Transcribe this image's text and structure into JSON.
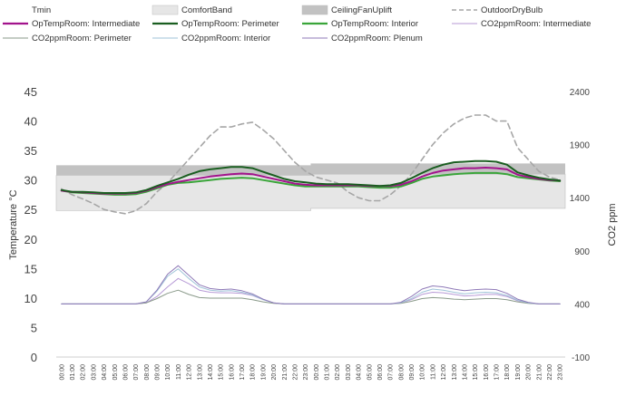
{
  "chart_data": {
    "type": "line",
    "title": "",
    "ylabel": "Temperature °C",
    "y2label": "CO2 ppm",
    "ylim": [
      0,
      45
    ],
    "y2lim": [
      -100,
      2400
    ],
    "yticks": [
      0,
      5,
      10,
      15,
      20,
      25,
      30,
      35,
      40,
      45
    ],
    "y2ticks": [
      -100,
      400,
      900,
      1400,
      1900,
      2400
    ],
    "x": [
      "00:00",
      "01:00",
      "02:00",
      "03:00",
      "04:00",
      "05:00",
      "06:00",
      "07:00",
      "08:00",
      "09:00",
      "10:00",
      "11:00",
      "12:00",
      "13:00",
      "14:00",
      "15:00",
      "16:00",
      "17:00",
      "18:00",
      "19:00",
      "20:00",
      "21:00",
      "22:00",
      "23:00",
      "00:00",
      "01:00",
      "02:00",
      "03:00",
      "04:00",
      "05:00",
      "06:00",
      "07:00",
      "08:00",
      "09:00",
      "10:00",
      "11:00",
      "12:00",
      "13:00",
      "14:00",
      "15:00",
      "16:00",
      "17:00",
      "18:00",
      "19:00",
      "20:00",
      "21:00",
      "22:00",
      "23:00"
    ],
    "legend": [
      {
        "name": "Tmin",
        "style": "none",
        "color": "#ffffff"
      },
      {
        "name": "ComfortBand",
        "style": "box",
        "color": "#e6e6e6"
      },
      {
        "name": "CeilingFanUplift",
        "style": "box",
        "color": "#c2c2c2"
      },
      {
        "name": "OutdoorDryBulb",
        "style": "dash",
        "color": "#a6a6a6"
      },
      {
        "name": "OpTempRoom: Intermediate",
        "style": "line",
        "color": "#a2138c"
      },
      {
        "name": "OpTempRoom: Perimeter",
        "style": "line",
        "color": "#1a5e20"
      },
      {
        "name": "OpTempRoom: Interior",
        "style": "line",
        "color": "#3aa53a"
      },
      {
        "name": "CO2ppmRoom: Intermediate",
        "style": "thin",
        "color": "#b79ad6"
      },
      {
        "name": "CO2ppmRoom: Perimeter",
        "style": "thin",
        "color": "#8a9a8a"
      },
      {
        "name": "CO2ppmRoom: Interior",
        "style": "thin",
        "color": "#9fc3d8"
      },
      {
        "name": "CO2ppmRoom: Plenum",
        "style": "thin",
        "color": "#8f7ab8"
      }
    ],
    "bands": {
      "comfort_low": [
        24.8,
        24.8,
        24.8,
        24.8,
        24.8,
        24.8,
        24.8,
        24.8,
        24.8,
        24.8,
        24.8,
        24.8,
        24.8,
        24.8,
        24.8,
        24.8,
        24.8,
        24.8,
        24.8,
        24.8,
        24.8,
        24.8,
        24.8,
        24.8,
        25.2,
        25.2,
        25.2,
        25.2,
        25.2,
        25.2,
        25.2,
        25.2,
        25.2,
        25.2,
        25.2,
        25.2,
        25.2,
        25.2,
        25.2,
        25.2,
        25.2,
        25.2,
        25.2,
        25.2,
        25.2,
        25.2,
        25.2,
        25.2
      ],
      "comfort_high": [
        30.8,
        30.8,
        30.8,
        30.8,
        30.8,
        30.8,
        30.8,
        30.8,
        30.8,
        30.8,
        30.8,
        30.8,
        30.8,
        30.8,
        30.8,
        30.8,
        30.8,
        30.8,
        30.8,
        30.8,
        30.8,
        30.8,
        30.8,
        30.8,
        31.0,
        31.0,
        31.0,
        31.0,
        31.0,
        31.0,
        31.0,
        31.0,
        31.0,
        31.0,
        31.0,
        31.0,
        31.0,
        31.0,
        31.0,
        31.0,
        31.0,
        31.0,
        31.0,
        31.0,
        31.0,
        31.0,
        31.0,
        31.0
      ],
      "uplift_high": [
        32.5,
        32.5,
        32.5,
        32.5,
        32.5,
        32.5,
        32.5,
        32.5,
        32.5,
        32.5,
        32.5,
        32.5,
        32.5,
        32.5,
        32.5,
        32.5,
        32.5,
        32.5,
        32.5,
        32.5,
        32.5,
        32.5,
        32.5,
        32.5,
        32.8,
        32.8,
        32.8,
        32.8,
        32.8,
        32.8,
        32.8,
        32.8,
        32.8,
        32.8,
        32.8,
        32.8,
        32.8,
        32.8,
        32.8,
        32.8,
        32.8,
        32.8,
        32.8,
        32.8,
        32.8,
        32.8,
        32.8,
        32.8
      ]
    },
    "series": [
      {
        "name": "OutdoorDryBulb",
        "axis": "left",
        "color": "#a6a6a6",
        "width": 1.6,
        "dash": "6,4",
        "values": [
          28.5,
          27.5,
          26.8,
          26.0,
          25.0,
          24.6,
          24.3,
          24.8,
          26.0,
          28.0,
          29.5,
          31.5,
          33.5,
          35.5,
          37.5,
          39.0,
          39.0,
          39.5,
          39.8,
          38.5,
          37.0,
          35.0,
          33.0,
          31.5,
          30.5,
          30.0,
          29.5,
          28.0,
          27.0,
          26.5,
          26.5,
          27.5,
          29.0,
          31.0,
          33.5,
          36.0,
          38.0,
          39.5,
          40.5,
          41.0,
          41.0,
          40.0,
          40.0,
          35.5,
          33.5,
          31.5,
          30.5,
          30.0
        ]
      },
      {
        "name": "CO2ppmRoom: Intermediate",
        "axis": "right",
        "color": "#b79ad6",
        "width": 1,
        "values": [
          400,
          400,
          400,
          400,
          400,
          400,
          400,
          400,
          410,
          470,
          560,
          640,
          590,
          530,
          510,
          505,
          505,
          500,
          480,
          440,
          410,
          400,
          400,
          400,
          400,
          400,
          400,
          400,
          400,
          400,
          400,
          400,
          410,
          440,
          490,
          510,
          505,
          490,
          475,
          480,
          490,
          490,
          470,
          430,
          410,
          400,
          400,
          400
        ]
      },
      {
        "name": "CO2ppmRoom: Perimeter",
        "axis": "right",
        "color": "#8a9a8a",
        "width": 1,
        "values": [
          400,
          400,
          400,
          400,
          400,
          400,
          400,
          400,
          410,
          450,
          500,
          530,
          490,
          460,
          455,
          455,
          455,
          455,
          440,
          420,
          405,
          400,
          400,
          400,
          400,
          400,
          400,
          400,
          400,
          400,
          400,
          400,
          405,
          425,
          450,
          460,
          455,
          445,
          440,
          445,
          450,
          450,
          440,
          420,
          405,
          400,
          400,
          400
        ]
      },
      {
        "name": "CO2ppmRoom: Interior",
        "axis": "right",
        "color": "#9fc3d8",
        "width": 1,
        "values": [
          400,
          400,
          400,
          400,
          400,
          400,
          400,
          400,
          420,
          520,
          660,
          730,
          640,
          560,
          530,
          520,
          525,
          510,
          485,
          440,
          410,
          400,
          400,
          400,
          400,
          400,
          400,
          400,
          400,
          400,
          400,
          400,
          410,
          450,
          510,
          540,
          530,
          510,
          495,
          505,
          510,
          505,
          480,
          435,
          410,
          400,
          400,
          400
        ]
      },
      {
        "name": "CO2ppmRoom: Plenum",
        "axis": "right",
        "color": "#8f7ab8",
        "width": 1,
        "values": [
          400,
          400,
          400,
          400,
          400,
          400,
          400,
          400,
          420,
          530,
          680,
          760,
          670,
          580,
          545,
          535,
          540,
          525,
          495,
          445,
          410,
          400,
          400,
          400,
          400,
          400,
          400,
          400,
          400,
          400,
          400,
          400,
          415,
          470,
          540,
          570,
          560,
          540,
          525,
          535,
          540,
          535,
          500,
          445,
          415,
          400,
          400,
          400
        ]
      },
      {
        "name": "OpTempRoom: Interior",
        "axis": "left",
        "color": "#3aa53a",
        "width": 2,
        "values": [
          28.2,
          27.9,
          27.8,
          27.7,
          27.6,
          27.5,
          27.5,
          27.6,
          28.0,
          28.6,
          29.2,
          29.5,
          29.6,
          29.8,
          30.0,
          30.2,
          30.3,
          30.4,
          30.3,
          30.0,
          29.7,
          29.4,
          29.1,
          28.9,
          28.9,
          28.9,
          28.9,
          28.9,
          28.9,
          28.8,
          28.7,
          28.7,
          28.9,
          29.5,
          30.2,
          30.6,
          30.8,
          31.0,
          31.1,
          31.2,
          31.2,
          31.2,
          31.0,
          30.5,
          30.3,
          30.1,
          29.9,
          29.8
        ]
      },
      {
        "name": "OpTempRoom: Intermediate",
        "axis": "left",
        "color": "#a2138c",
        "width": 2,
        "values": [
          28.2,
          28.0,
          27.9,
          27.8,
          27.7,
          27.7,
          27.7,
          27.8,
          28.2,
          28.8,
          29.3,
          29.7,
          30.0,
          30.3,
          30.6,
          30.8,
          31.0,
          31.1,
          31.0,
          30.6,
          30.2,
          29.8,
          29.4,
          29.2,
          29.1,
          29.1,
          29.1,
          29.1,
          29.1,
          29.0,
          29.0,
          29.0,
          29.2,
          29.8,
          30.6,
          31.2,
          31.6,
          31.8,
          32.0,
          32.0,
          32.1,
          32.0,
          31.8,
          30.9,
          30.5,
          30.2,
          30.0,
          29.9
        ]
      },
      {
        "name": "OpTempRoom: Perimeter",
        "axis": "left",
        "color": "#1a5e20",
        "width": 2,
        "values": [
          28.3,
          28.0,
          28.0,
          27.9,
          27.8,
          27.8,
          27.8,
          27.9,
          28.3,
          29.0,
          29.6,
          30.2,
          30.9,
          31.5,
          31.8,
          32.0,
          32.2,
          32.2,
          32.0,
          31.4,
          30.8,
          30.2,
          29.8,
          29.6,
          29.4,
          29.3,
          29.3,
          29.3,
          29.2,
          29.1,
          29.0,
          29.1,
          29.5,
          30.3,
          31.2,
          32.0,
          32.6,
          33.0,
          33.1,
          33.2,
          33.2,
          33.1,
          32.6,
          31.3,
          30.8,
          30.4,
          30.1,
          29.9
        ]
      }
    ]
  }
}
